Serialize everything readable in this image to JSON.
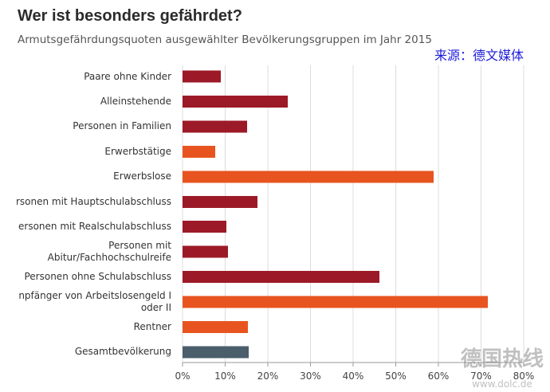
{
  "source": "来源：德文媒体",
  "watermark": {
    "name": "德国热线",
    "url": "www.dolc.de"
  },
  "chart_data": {
    "type": "bar",
    "title": "Wer ist besonders gefährdet?",
    "subtitle": "Armutsgefährdungsquoten ausgewählter Bevölkerungsgruppen im Jahr 2015",
    "categories": [
      "Paare ohne Kinder",
      "Alleinstehende",
      "Personen in Familien",
      "Erwerbstätige",
      "Erwerbslose",
      "rsonen mit Hauptschulabschluss",
      "ersonen mit Realschulabschluss",
      "Personen mit\nAbitur/Fachhochschulreife",
      "Personen ohne Schulabschluss",
      "npfänger von Arbeitslosengeld I\noder II",
      "Rentner",
      "Gesamtbevölkerung"
    ],
    "values": [
      9.0,
      24.7,
      15.1,
      7.7,
      58.9,
      17.6,
      10.3,
      10.7,
      46.2,
      71.6,
      15.3,
      15.5
    ],
    "bar_colors": [
      "#9c1a27",
      "#9c1a27",
      "#9c1a27",
      "#e85420",
      "#e85420",
      "#9c1a27",
      "#9c1a27",
      "#9c1a27",
      "#9c1a27",
      "#e85420",
      "#e85420",
      "#4a5e6b"
    ],
    "xlim": [
      0,
      80
    ],
    "xticks": [
      0,
      10,
      20,
      30,
      40,
      50,
      60,
      70,
      80
    ],
    "xtick_labels": [
      "0%",
      "10%",
      "20%",
      "30%",
      "40%",
      "50%",
      "60%",
      "70%",
      "80%"
    ],
    "grid": true,
    "xlabel": "",
    "ylabel": ""
  }
}
